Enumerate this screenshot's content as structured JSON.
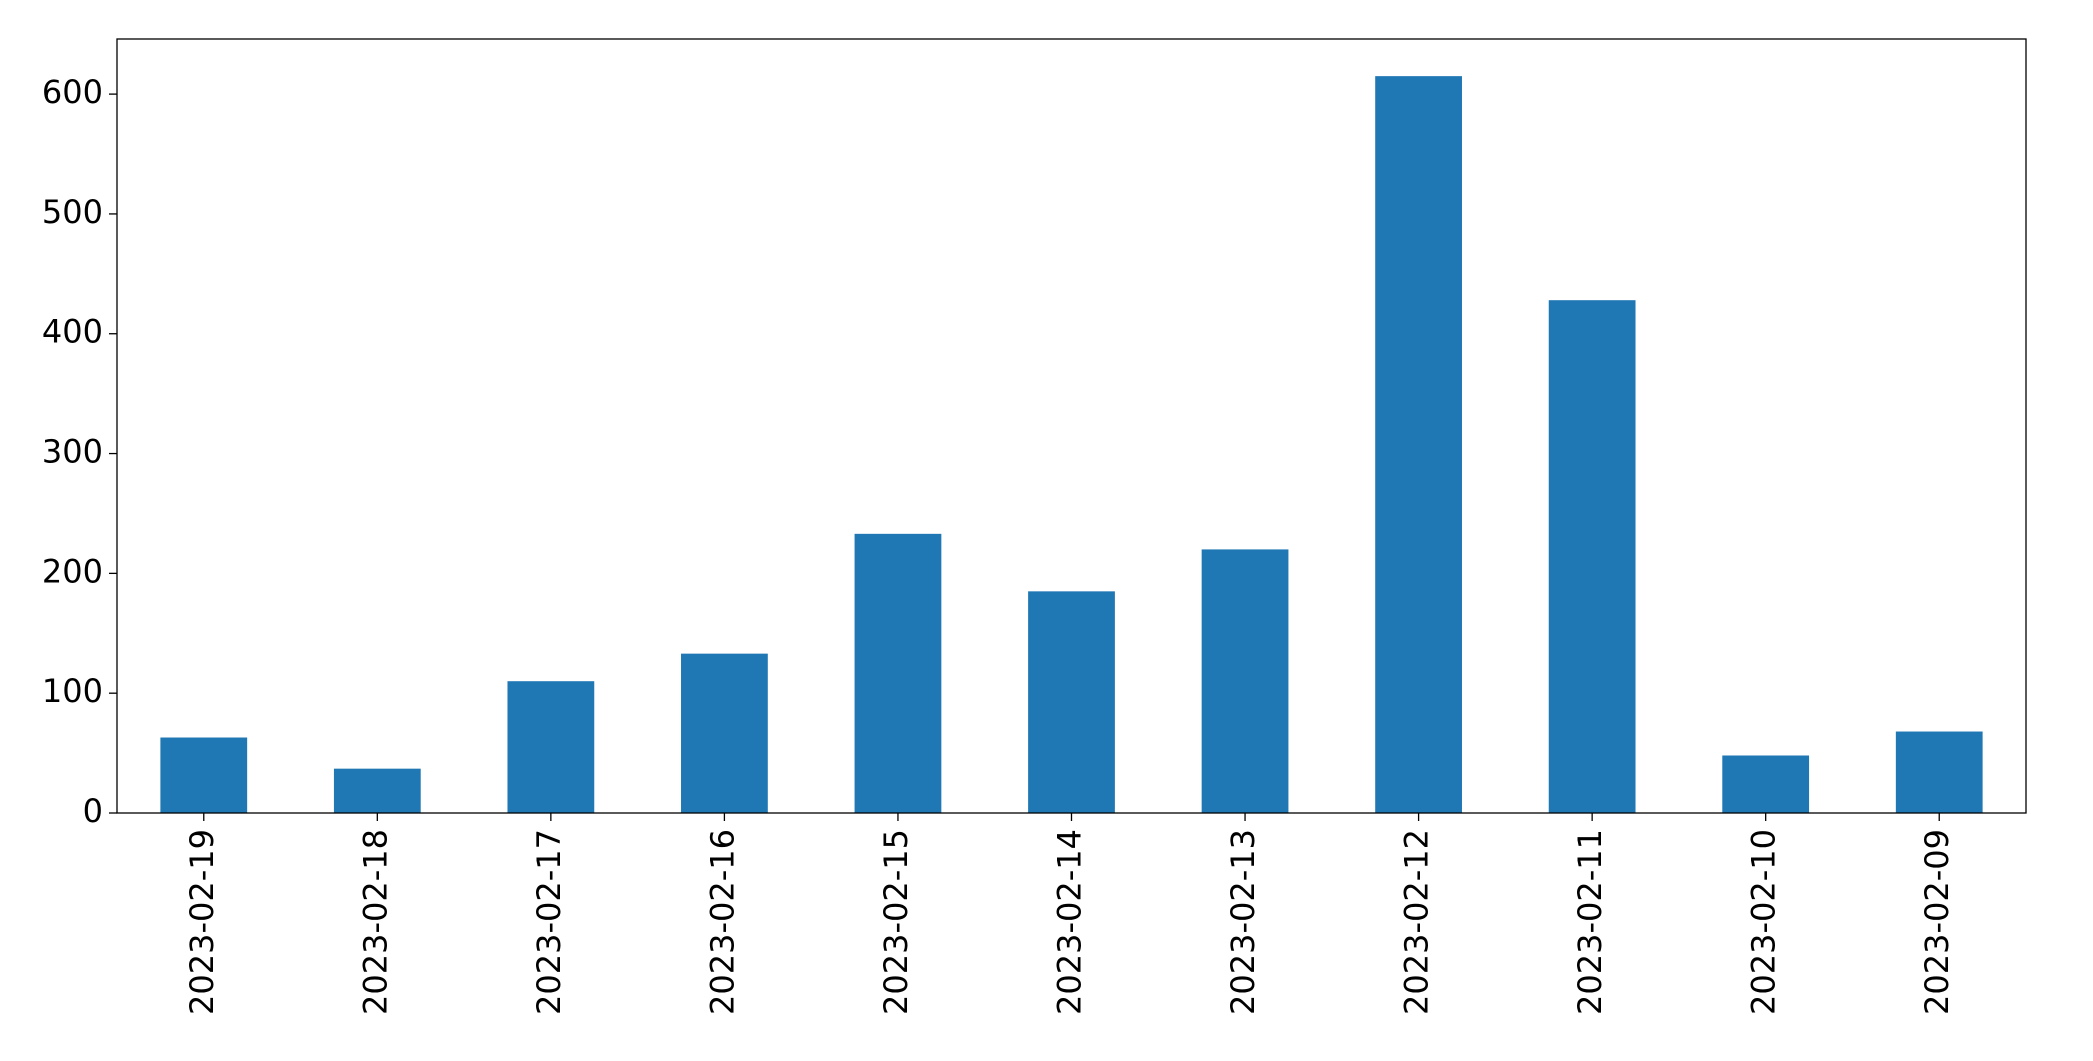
{
  "chart_data": {
    "type": "bar",
    "categories": [
      "2023-02-19",
      "2023-02-18",
      "2023-02-17",
      "2023-02-16",
      "2023-02-15",
      "2023-02-14",
      "2023-02-13",
      "2023-02-12",
      "2023-02-11",
      "2023-02-10",
      "2023-02-09"
    ],
    "values": [
      63,
      37,
      110,
      133,
      233,
      185,
      220,
      615,
      428,
      48,
      68
    ],
    "color": "#1f77b4",
    "ylim": [
      0,
      646
    ],
    "yticks": [
      0,
      100,
      200,
      300,
      400,
      500,
      600
    ],
    "grid": false
  }
}
